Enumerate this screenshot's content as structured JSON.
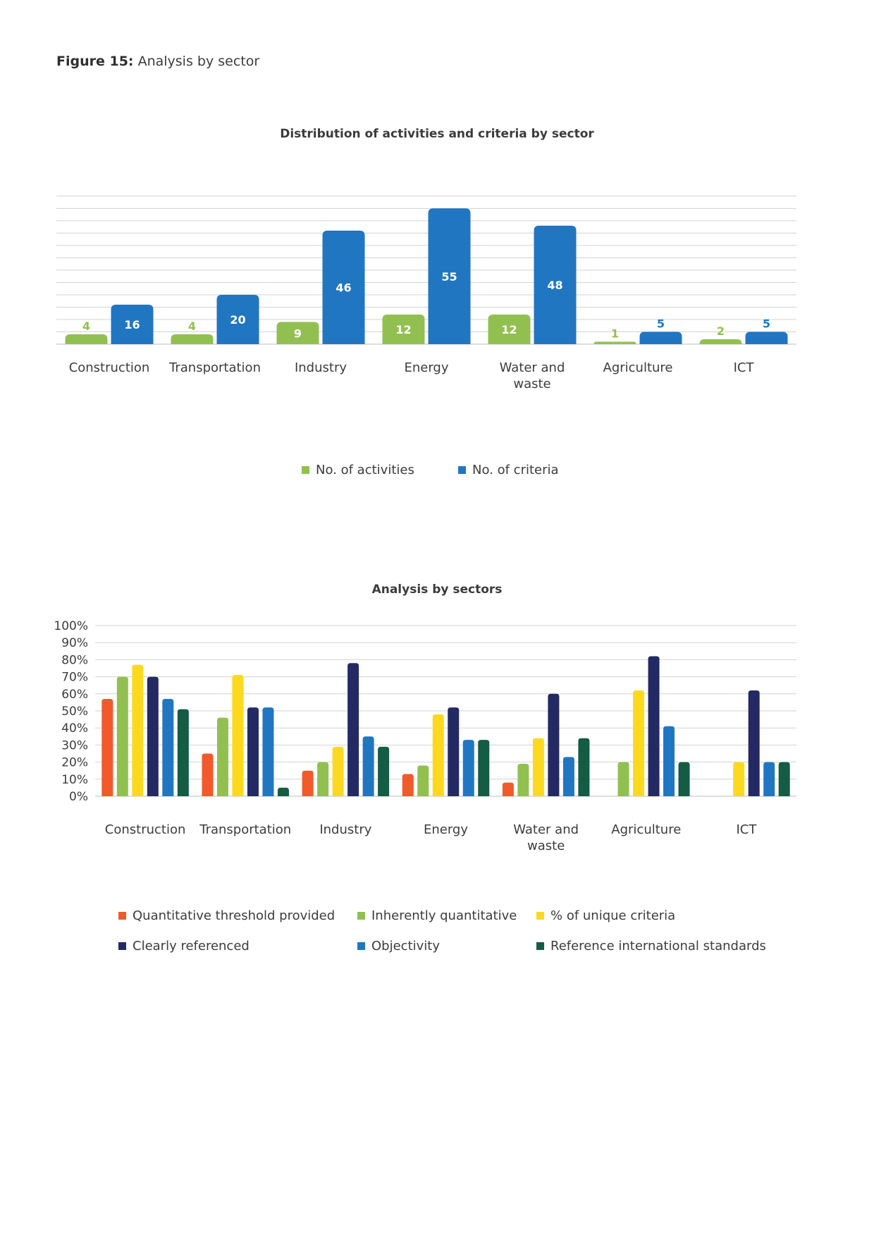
{
  "figure": {
    "label": "Figure 15:",
    "caption": " Analysis by sector"
  },
  "chart_data": [
    {
      "type": "bar",
      "title": "Distribution of activities and criteria by sector",
      "categories": [
        "Construction",
        "Transportation",
        "Industry",
        "Energy",
        "Water and waste",
        "Agriculture",
        "ICT"
      ],
      "category_lines": [
        [
          "Construction"
        ],
        [
          "Transportation"
        ],
        [
          "Industry"
        ],
        [
          "Energy"
        ],
        [
          "Water and",
          "waste"
        ],
        [
          "Agriculture"
        ],
        [
          "ICT"
        ]
      ],
      "series": [
        {
          "name": "No. of activities",
          "color": "#92c050",
          "values": [
            4,
            4,
            9,
            12,
            12,
            1,
            2
          ]
        },
        {
          "name": "No. of criteria",
          "color": "#2176c1",
          "values": [
            16,
            20,
            46,
            55,
            48,
            5,
            5
          ]
        }
      ],
      "ylim": [
        0,
        60
      ],
      "grid": true,
      "data_labels": true,
      "legend_position": "bottom"
    },
    {
      "type": "bar",
      "title": "Analysis by sectors",
      "categories": [
        "Construction",
        "Transportation",
        "Industry",
        "Energy",
        "Water and waste",
        "Agriculture",
        "ICT"
      ],
      "category_lines": [
        [
          "Construction"
        ],
        [
          "Transportation"
        ],
        [
          "Industry"
        ],
        [
          "Energy"
        ],
        [
          "Water and",
          "waste"
        ],
        [
          "Agriculture"
        ],
        [
          "ICT"
        ]
      ],
      "y_ticks": [
        "0%",
        "10%",
        "20%",
        "30%",
        "40%",
        "50%",
        "60%",
        "70%",
        "80%",
        "90%",
        "100%"
      ],
      "series": [
        {
          "name": "Quantitative threshold provided",
          "color": "#f15a2b",
          "values": [
            57,
            25,
            15,
            13,
            8,
            0,
            0
          ]
        },
        {
          "name": "Inherently quantitative",
          "color": "#92c050",
          "values": [
            70,
            46,
            20,
            18,
            19,
            20,
            0
          ]
        },
        {
          "name": "% of unique criteria",
          "color": "#fcd91f",
          "values": [
            77,
            71,
            29,
            48,
            34,
            62,
            20
          ]
        },
        {
          "name": "Clearly referenced",
          "color": "#232a63",
          "values": [
            70,
            52,
            78,
            52,
            60,
            82,
            62
          ]
        },
        {
          "name": "Objectivity",
          "color": "#2176c1",
          "values": [
            57,
            52,
            35,
            33,
            23,
            41,
            20
          ]
        },
        {
          "name": "Reference international standards",
          "color": "#145c43",
          "values": [
            51,
            5,
            29,
            33,
            34,
            20,
            20
          ]
        }
      ],
      "ylim": [
        0,
        100
      ],
      "grid": true,
      "legend_position": "bottom"
    }
  ]
}
